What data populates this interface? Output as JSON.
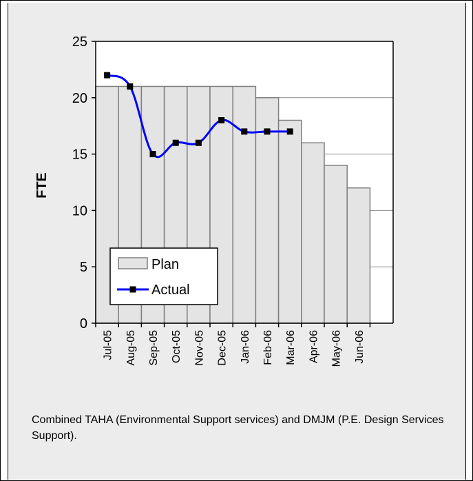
{
  "chart_data": {
    "type": "bar+line",
    "categories": [
      "Jul-05",
      "Aug-05",
      "Sep-05",
      "Oct-05",
      "Nov-05",
      "Dec-05",
      "Jan-06",
      "Feb-06",
      "Mar-06",
      "Apr-06",
      "May-06",
      "Jun-06"
    ],
    "series": [
      {
        "name": "Plan",
        "kind": "bar",
        "values": [
          21,
          21,
          21,
          21,
          21,
          21,
          21,
          20,
          18,
          16,
          14,
          12
        ]
      },
      {
        "name": "Actual",
        "kind": "line",
        "values": [
          22,
          21,
          15,
          16,
          16,
          18,
          17,
          17,
          17,
          null,
          null,
          null
        ]
      }
    ],
    "ylabel": "FTE",
    "xlabel": "",
    "ylim": [
      0,
      25
    ],
    "yticks": [
      0,
      5,
      10,
      15,
      20,
      25
    ],
    "grid": true,
    "legend_position": "lower-left",
    "colors": {
      "plan_fill": "#e4e4e4",
      "plan_stroke": "#7f7f7f",
      "actual_line": "#0000ff",
      "actual_marker": "#000000",
      "plot_bg": "#ffffff"
    }
  },
  "caption": "Combined TAHA (Environmental Support services) and DMJM (P.E. Design Services Support)."
}
